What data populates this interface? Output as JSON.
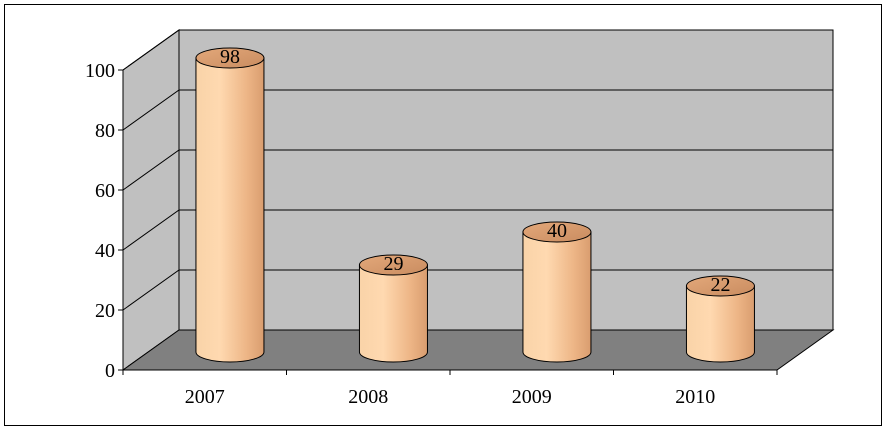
{
  "chart_data": {
    "type": "bar",
    "categories": [
      "2007",
      "2008",
      "2009",
      "2010"
    ],
    "values": [
      98,
      29,
      40,
      22
    ],
    "data_labels": [
      "98",
      "29",
      "40",
      "22"
    ],
    "title": "",
    "xlabel": "",
    "ylabel": "",
    "ylim": [
      0,
      100
    ],
    "yticks": [
      "0",
      "20",
      "40",
      "60",
      "80",
      "100"
    ],
    "grid": true,
    "legend": "none",
    "style": "3d-cylinder",
    "colors": {
      "bar_fill": "#f5c08c",
      "bar_stroke": "#000000",
      "wall": "#c0c0c0",
      "floor": "#808080",
      "gridline": "#000000"
    }
  }
}
